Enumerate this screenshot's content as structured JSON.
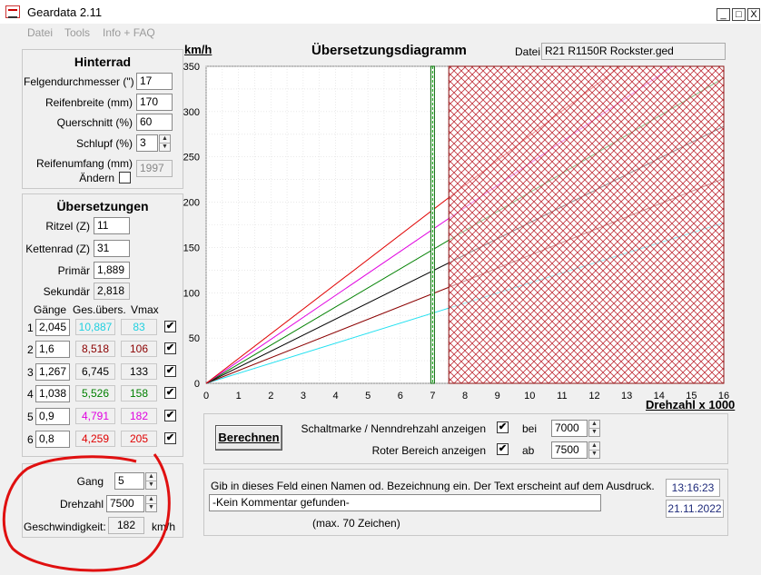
{
  "window": {
    "title": "Geardata 2.11",
    "min": "_",
    "max": "□",
    "close": "X"
  },
  "menu": [
    {
      "label": "Datei"
    },
    {
      "label": "Tools"
    },
    {
      "label": "Info + FAQ"
    }
  ],
  "hinterrad": {
    "title": "Hinterrad",
    "felgen_label": "Felgendurchmesser (\")",
    "felgen_value": "17",
    "reifenbreite_label": "Reifenbreite (mm)",
    "reifenbreite_value": "170",
    "querschnitt_label": "Querschnitt (%)",
    "querschnitt_value": "60",
    "schlupf_label": "Schlupf (%)",
    "schlupf_value": "3",
    "umfang_label": "Reifenumfang (mm)",
    "aendern_label": "Ändern",
    "umfang_value": "1997"
  },
  "uebersetzungen": {
    "title": "Übersetzungen",
    "ritzel_label": "Ritzel (Z)",
    "ritzel_value": "11",
    "kettenrad_label": "Kettenrad (Z)",
    "kettenrad_value": "31",
    "primaer_label": "Primär",
    "primaer_value": "1,889",
    "sekundaer_label": "Sekundär",
    "sekundaer_value": "2,818",
    "col_gaenge": "Gänge",
    "col_ges": "Ges.übers.",
    "col_vmax": "Vmax",
    "gears": [
      {
        "num": "1",
        "ratio": "2,045",
        "ges": "10,887",
        "vmax": "83",
        "color": "#20d0e0",
        "checked": "✔"
      },
      {
        "num": "2",
        "ratio": "1,6",
        "ges": "8,518",
        "vmax": "106",
        "color": "#8b0000",
        "checked": "✔"
      },
      {
        "num": "3",
        "ratio": "1,267",
        "ges": "6,745",
        "vmax": "133",
        "color": "#000000",
        "checked": "✔"
      },
      {
        "num": "4",
        "ratio": "1,038",
        "ges": "5,526",
        "vmax": "158",
        "color": "#008000",
        "checked": "✔"
      },
      {
        "num": "5",
        "ratio": "0,9",
        "ges": "4,791",
        "vmax": "182",
        "color": "#e000e0",
        "checked": "✔"
      },
      {
        "num": "6",
        "ratio": "0,8",
        "ges": "4,259",
        "vmax": "205",
        "color": "#e00000",
        "checked": "✔"
      }
    ]
  },
  "calc": {
    "gang_label": "Gang",
    "gang_value": "5",
    "drehzahl_label": "Drehzahl",
    "drehzahl_value": "7500",
    "geschw_label": "Geschwindigkeit:",
    "geschw_value": "182",
    "unit": "km/h"
  },
  "chart_header": {
    "ylabel": "km/h",
    "title": "Übersetzungsdiagramm",
    "datei_label": "Datei:",
    "datei_value": "R21 R1150R Rockster.ged"
  },
  "chart_data": {
    "type": "line",
    "xlabel": "Drehzahl x 1000",
    "ylabel": "km/h",
    "xlim": [
      0,
      16
    ],
    "ylim": [
      0,
      350
    ],
    "xticks": [
      "0",
      "1",
      "2",
      "3",
      "4",
      "5",
      "6",
      "7",
      "8",
      "9",
      "10",
      "11",
      "12",
      "13",
      "14",
      "15",
      "16"
    ],
    "yticks": [
      "0",
      "50",
      "100",
      "150",
      "200",
      "250",
      "300",
      "350"
    ],
    "marker_rpm": 7,
    "red_zone_from": 7.5,
    "series": [
      {
        "color": "#20e0f0",
        "slope": 11.07
      },
      {
        "color": "#8b0000",
        "slope": 14.13
      },
      {
        "color": "#000000",
        "slope": 17.73
      },
      {
        "color": "#008000",
        "slope": 21.07
      },
      {
        "color": "#e000e0",
        "slope": 24.27
      },
      {
        "color": "#e00000",
        "slope": 27.33
      }
    ]
  },
  "controls": {
    "berechnen_label": "Berechnen",
    "schaltmarke_label": "Schaltmarke / Nenndrehzahl anzeigen",
    "schaltmarke_checked": "✔",
    "bei_label": "bei",
    "bei_value": "7000",
    "roter_label": "Roter Bereich anzeigen",
    "roter_checked": "✔",
    "ab_label": "ab",
    "ab_value": "7500"
  },
  "comment": {
    "hint": "Gib in dieses Feld einen Namen od. Bezeichnung ein. Der Text erscheint auf dem Ausdruck.",
    "value": "-Kein Kommentar gefunden-",
    "max": "(max. 70 Zeichen)",
    "time": "13:16:23",
    "date": "21.11.2022"
  }
}
